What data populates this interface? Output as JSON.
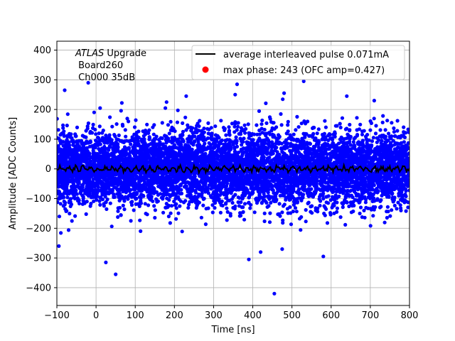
{
  "chart_data": {
    "type": "scatter",
    "title": "",
    "xlabel": "Time [ns]",
    "ylabel": "Amplitude [ADC Counts]",
    "xlim": [
      -100,
      800
    ],
    "ylim": [
      -460,
      430
    ],
    "xticks": [
      -100,
      0,
      100,
      200,
      300,
      400,
      500,
      600,
      700,
      800
    ],
    "yticks": [
      -400,
      -300,
      -200,
      -100,
      0,
      100,
      200,
      300,
      400
    ],
    "grid": true,
    "legend_position": "top-right",
    "annotation": {
      "line1_italic": "ATLAS",
      "line1_rest": " Upgrade",
      "line2": " Board260",
      "line3": " Ch000 35dB"
    },
    "series": [
      {
        "name": "average interleaved pulse 0.071mA",
        "kind": "line",
        "color": "#000000",
        "x_range": [
          -100,
          800
        ],
        "mean": 0,
        "amplitude_approx": 15
      },
      {
        "name": "max phase: 243 (OFC amp=0.427)",
        "kind": "points",
        "color": "#ff0000",
        "points": []
      },
      {
        "name": "samples",
        "kind": "scatter",
        "color": "#0000ff",
        "x_range": [
          -100,
          800
        ],
        "core_range": [
          -100,
          100
        ],
        "notable_points": [
          {
            "x": -20,
            "y": 290
          },
          {
            "x": 530,
            "y": 295
          },
          {
            "x": 480,
            "y": 255
          },
          {
            "x": 355,
            "y": 250
          },
          {
            "x": 360,
            "y": 285
          },
          {
            "x": -80,
            "y": 265
          },
          {
            "x": 25,
            "y": -315
          },
          {
            "x": 50,
            "y": -355
          },
          {
            "x": 455,
            "y": -420
          },
          {
            "x": 390,
            "y": -305
          },
          {
            "x": 580,
            "y": -295
          },
          {
            "x": 475,
            "y": -270
          },
          {
            "x": 420,
            "y": -280
          },
          {
            "x": -95,
            "y": -260
          },
          {
            "x": 230,
            "y": 245
          },
          {
            "x": 640,
            "y": 245
          },
          {
            "x": 180,
            "y": 225
          },
          {
            "x": 710,
            "y": 230
          }
        ]
      }
    ]
  },
  "colors": {
    "scatter": "#0000ff",
    "average_line": "#000000",
    "max_phase": "#ff0000",
    "grid": "#b0b0b0"
  }
}
